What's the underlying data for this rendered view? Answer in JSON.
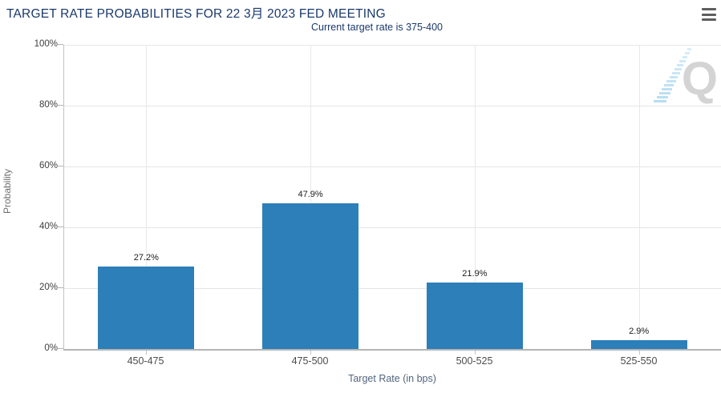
{
  "header": {
    "title": "TARGET RATE PROBABILITIES FOR 22 3月 2023 FED MEETING",
    "menu_icon": "hamburger-icon"
  },
  "subtitle": "Current target rate is 375-400",
  "watermark": {
    "letter": "Q"
  },
  "colors": {
    "title": "#1a396b",
    "bar": "#2c7fb8",
    "gridline": "#e5e5e5",
    "axis": "#b5b5b5"
  },
  "chart_data": {
    "type": "bar",
    "title": "TARGET RATE PROBABILITIES FOR 22 3月 2023 FED MEETING",
    "subtitle": "Current target rate is 375-400",
    "categories": [
      "450-475",
      "475-500",
      "500-525",
      "525-550"
    ],
    "values": [
      27.2,
      47.9,
      21.9,
      2.9
    ],
    "labels": [
      "27.2%",
      "47.9%",
      "21.9%",
      "2.9%"
    ],
    "xlabel": "Target Rate (in bps)",
    "ylabel": "Probability",
    "ylim": [
      0,
      100
    ],
    "yticks": [
      "0%",
      "20%",
      "40%",
      "60%",
      "80%",
      "100%"
    ],
    "grid": true,
    "legend": false,
    "bar_color": "#2c7fb8"
  }
}
